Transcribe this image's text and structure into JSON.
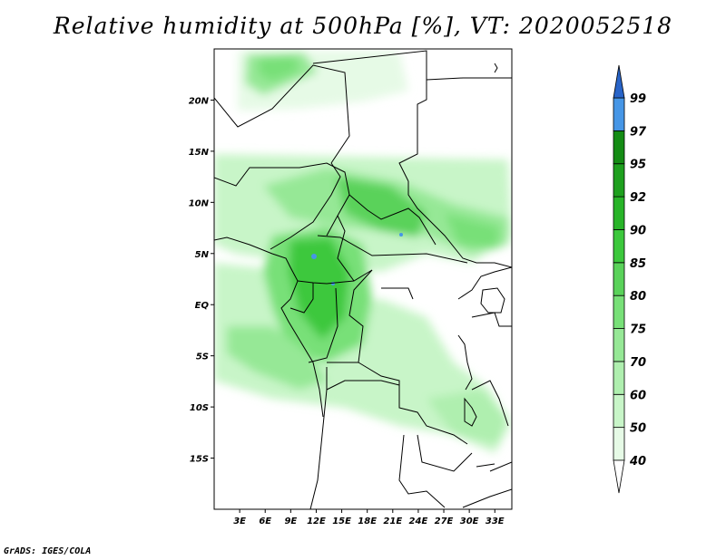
{
  "title": "Relative humidity at 500hPa [%], VT: 2020052518",
  "credit": "GrADS: IGES/COLA",
  "map": {
    "lon_range": [
      0,
      35
    ],
    "lat_range": [
      -20,
      25
    ],
    "lat_ticks": [
      {
        "value": 20,
        "label": "20N"
      },
      {
        "value": 15,
        "label": "15N"
      },
      {
        "value": 10,
        "label": "10N"
      },
      {
        "value": 5,
        "label": "5N"
      },
      {
        "value": 0,
        "label": "EQ"
      },
      {
        "value": -5,
        "label": "5S"
      },
      {
        "value": -10,
        "label": "10S"
      },
      {
        "value": -15,
        "label": "15S"
      }
    ],
    "lon_ticks": [
      {
        "value": 3,
        "label": "3E"
      },
      {
        "value": 6,
        "label": "6E"
      },
      {
        "value": 9,
        "label": "9E"
      },
      {
        "value": 12,
        "label": "12E"
      },
      {
        "value": 15,
        "label": "15E"
      },
      {
        "value": 18,
        "label": "18E"
      },
      {
        "value": 21,
        "label": "21E"
      },
      {
        "value": 24,
        "label": "24E"
      },
      {
        "value": 27,
        "label": "27E"
      },
      {
        "value": 30,
        "label": "30E"
      },
      {
        "value": 33,
        "label": "33E"
      }
    ]
  },
  "colorbar": {
    "levels": [
      {
        "label": "40",
        "color": "#e6fae6"
      },
      {
        "label": "50",
        "color": "#c8f5c8"
      },
      {
        "label": "60",
        "color": "#afefaf"
      },
      {
        "label": "70",
        "color": "#96e896"
      },
      {
        "label": "75",
        "color": "#78e078"
      },
      {
        "label": "80",
        "color": "#5ad25a"
      },
      {
        "label": "85",
        "color": "#3cc83c"
      },
      {
        "label": "90",
        "color": "#28b428"
      },
      {
        "label": "92",
        "color": "#1ea01e"
      },
      {
        "label": "95",
        "color": "#148c14"
      },
      {
        "label": "97",
        "color": "#4696e6"
      },
      {
        "label": "99",
        "color": "#1e6ed2"
      }
    ],
    "top_color": "#2864c8"
  }
}
